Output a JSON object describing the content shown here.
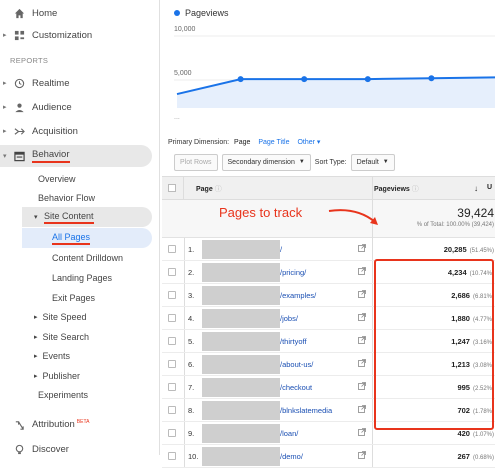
{
  "sidebar": {
    "home": "Home",
    "customization": "Customization",
    "reports_header": "REPORTS",
    "realtime": "Realtime",
    "audience": "Audience",
    "acquisition": "Acquisition",
    "behavior": "Behavior",
    "overview": "Overview",
    "behavior_flow": "Behavior Flow",
    "site_content": "Site Content",
    "all_pages": "All Pages",
    "content_drilldown": "Content Drilldown",
    "landing_pages": "Landing Pages",
    "exit_pages": "Exit Pages",
    "site_speed": "Site Speed",
    "site_search": "Site Search",
    "events": "Events",
    "publisher": "Publisher",
    "experiments": "Experiments",
    "attribution": "Attribution",
    "attribution_badge": "BETA",
    "discover": "Discover"
  },
  "chart": {
    "legend": "Pageviews",
    "y_top": "10,000",
    "y_mid": "5,000",
    "x_first": "...",
    "accent": "#1a73e8"
  },
  "chart_data": {
    "type": "line",
    "series": [
      {
        "name": "Pageviews",
        "values": [
          3400,
          5100,
          5100,
          5100,
          5200,
          5300
        ]
      }
    ],
    "ylim": [
      0,
      10000
    ]
  },
  "toolbar": {
    "primary_dimension_label": "Primary Dimension:",
    "dim_page": "Page",
    "dim_page_title": "Page Title",
    "dim_other": "Other",
    "plot_rows": "Plot Rows",
    "secondary_dimension": "Secondary dimension",
    "sort_type_label": "Sort Type:",
    "sort_default": "Default"
  },
  "table": {
    "col_page": "Page",
    "col_pageviews": "Pageviews",
    "col_next": "U",
    "total_value": "39,424",
    "total_sub": "% of Total: 100.00% (39,424)",
    "rows": [
      {
        "idx": "1.",
        "path": "/",
        "pv": "20,285",
        "pct": "(51.45%)"
      },
      {
        "idx": "2.",
        "path": "/pricing/",
        "pv": "4,234",
        "pct": "(10.74%)"
      },
      {
        "idx": "3.",
        "path": "/examples/",
        "pv": "2,686",
        "pct": "(6.81%)"
      },
      {
        "idx": "4.",
        "path": "/jobs/",
        "pv": "1,880",
        "pct": "(4.77%)"
      },
      {
        "idx": "5.",
        "path": "/thirtyoff",
        "pv": "1,247",
        "pct": "(3.16%)"
      },
      {
        "idx": "6.",
        "path": "/about-us/",
        "pv": "1,213",
        "pct": "(3.08%)"
      },
      {
        "idx": "7.",
        "path": "/checkout",
        "pv": "995",
        "pct": "(2.52%)"
      },
      {
        "idx": "8.",
        "path": "/blnkslatemedia",
        "pv": "702",
        "pct": "(1.78%)"
      },
      {
        "idx": "9.",
        "path": "/loan/",
        "pv": "420",
        "pct": "(1.07%)"
      },
      {
        "idx": "10.",
        "path": "/demo/",
        "pv": "267",
        "pct": "(0.68%)"
      }
    ]
  },
  "annotation": {
    "text": "Pages to track",
    "color": "#e8341c"
  }
}
